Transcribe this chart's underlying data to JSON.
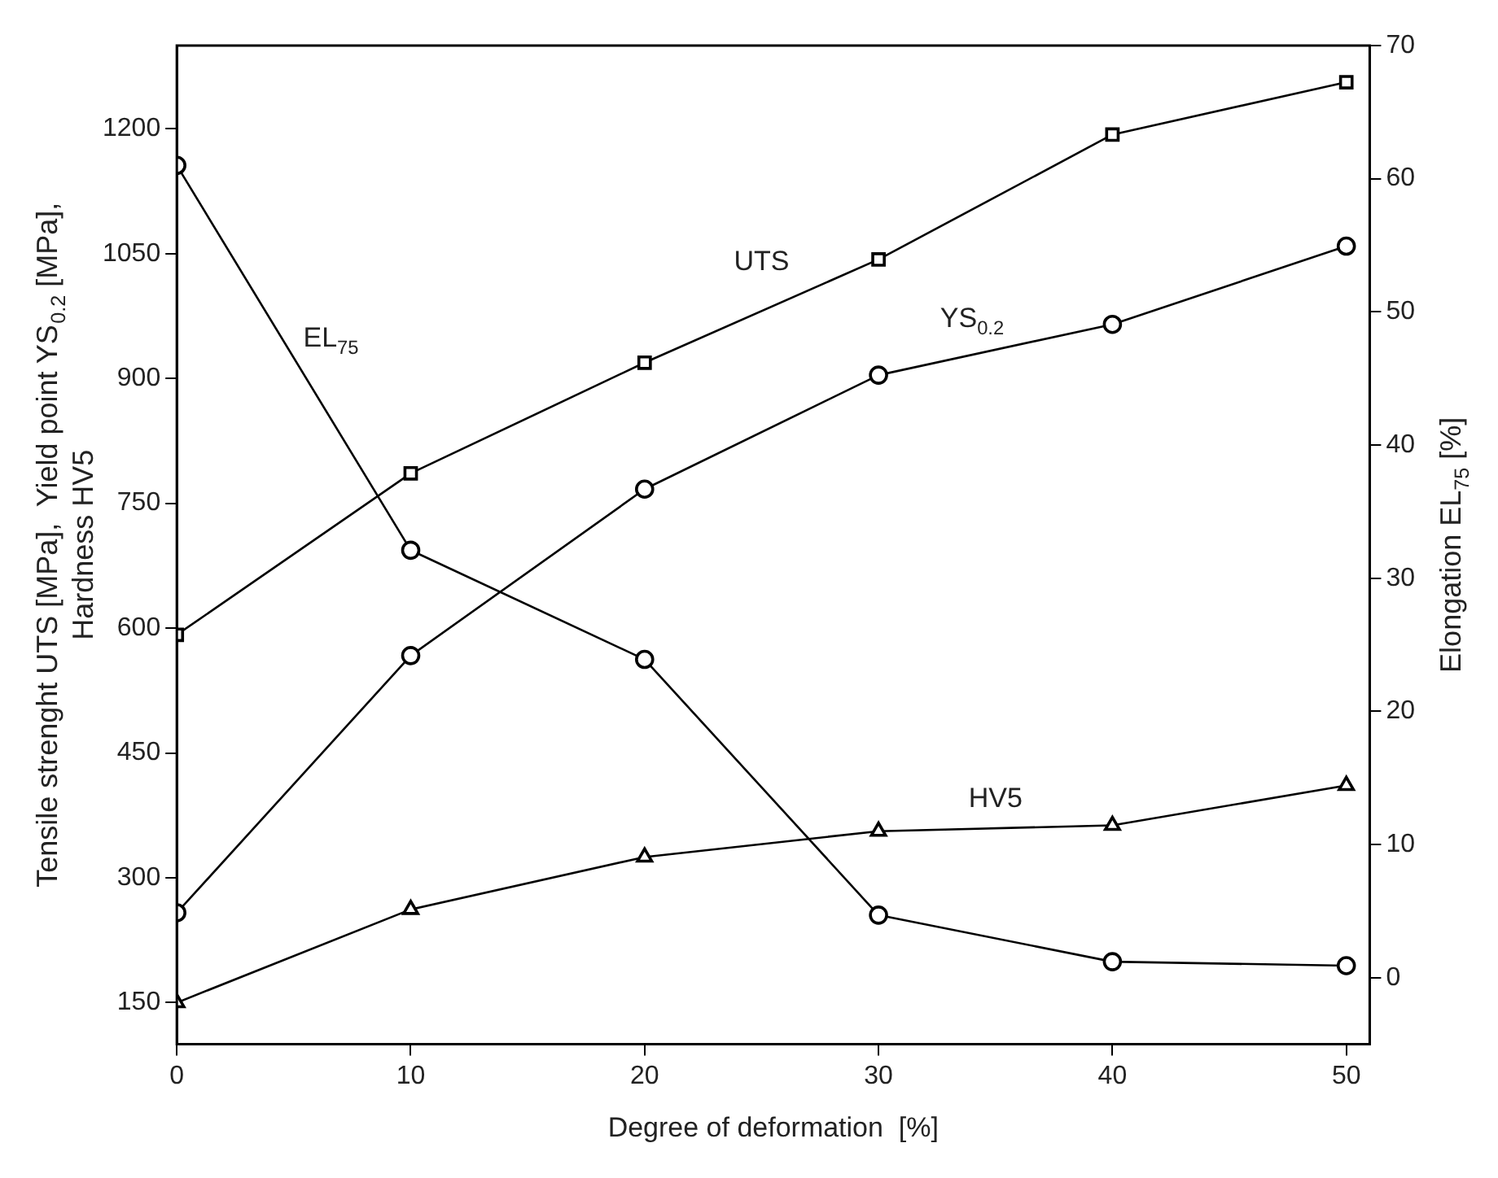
{
  "chart_data": {
    "type": "line",
    "xlabel": "Degree of deformation  [%]",
    "ylabel": "Tensile strenght UTS [MPa],  Yield point YS$_{0.2}$ [MPa],\nHardness HV5",
    "y2label": "Elongation EL$_{75}$ [%]",
    "x": [
      0,
      10,
      20,
      30,
      40,
      50
    ],
    "series": [
      {
        "name": "UTS",
        "color": "#000000",
        "marker": "square",
        "values": [
          592,
          786,
          919,
          1043,
          1193,
          1256
        ]
      },
      {
        "name": "YS$_{0.2}$",
        "color": "#000000",
        "marker": "circle",
        "values": [
          258,
          567,
          767,
          904,
          965,
          1059
        ]
      },
      {
        "name": "HV5",
        "color": "#000000",
        "marker": "triangle",
        "values": [
          150,
          262,
          325,
          356,
          363,
          411
        ]
      },
      {
        "name": "EL$_{75}$",
        "color": "#000000",
        "marker": "circle",
        "axis": "y2",
        "values": [
          61.0,
          32.1,
          23.9,
          4.7,
          1.2,
          0.9
        ]
      }
    ],
    "xlim": [
      0,
      51
    ],
    "xticks": [
      0,
      10,
      20,
      30,
      40,
      50
    ],
    "ylim": [
      100,
      1300
    ],
    "yticks": [
      150,
      300,
      450,
      600,
      750,
      900,
      1050,
      1200
    ],
    "y2lim": [
      -5,
      70
    ],
    "y2ticks": [
      0,
      10,
      20,
      30,
      40,
      50,
      60,
      70
    ],
    "grid": false,
    "legend": false,
    "line_style": "solid"
  }
}
